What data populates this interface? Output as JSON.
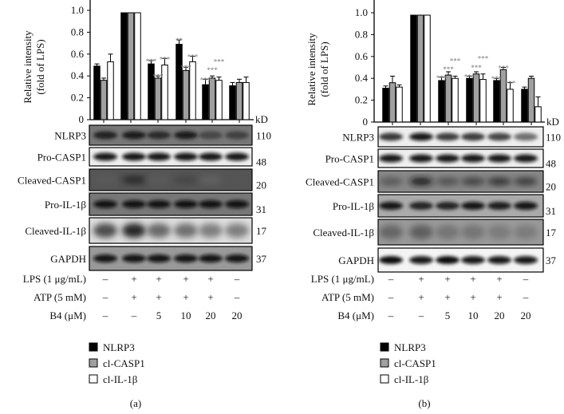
{
  "chart_data": [
    {
      "type": "bar",
      "panel_label": "(a)",
      "ylabel": [
        "Relative intensity",
        "(fold of LPS)"
      ],
      "ylim": [
        0,
        1.0
      ],
      "yticks": [
        "0",
        "0.2",
        "0.4",
        "0.6",
        "0.8",
        "1.0"
      ],
      "kd_label": "kD",
      "series": [
        {
          "name": "NLRP3",
          "color": "#000000",
          "values": [
            0.49,
            1.0,
            0.51,
            0.69,
            0.32,
            0.31
          ],
          "errors": [
            0.02,
            0,
            0.03,
            0.04,
            0.05,
            0.03
          ],
          "sig": [
            "",
            "",
            "***",
            "**",
            "***",
            ""
          ]
        },
        {
          "name": "cl-CASP1",
          "color": "#a0a0a0",
          "values": [
            0.36,
            1.0,
            0.38,
            0.45,
            0.38,
            0.34
          ],
          "errors": [
            0.02,
            0,
            0.02,
            0.03,
            0.02,
            0.03
          ],
          "sig": [
            "",
            "",
            "***",
            "***",
            "***",
            ""
          ]
        },
        {
          "name": "cl-IL-1β",
          "color": "#ffffff",
          "values": [
            0.53,
            1.0,
            0.5,
            0.53,
            0.36,
            0.34
          ],
          "errors": [
            0.07,
            0,
            0.06,
            0.05,
            0.03,
            0.05
          ],
          "sig": [
            "",
            "",
            "***",
            "***",
            "***",
            ""
          ]
        }
      ],
      "blots": [
        {
          "name": "NLRP3",
          "kd": "110"
        },
        {
          "name": "Pro-CASP1",
          "kd": "48"
        },
        {
          "name": "Cleaved-CASP1",
          "kd": "20"
        },
        {
          "name": "Pro-IL-1β",
          "kd": "31"
        },
        {
          "name": "Cleaved-IL-1β",
          "kd": "17"
        },
        {
          "name": "GAPDH",
          "kd": "37"
        }
      ],
      "conditions": [
        {
          "label": "LPS (1 μg/mL)",
          "values": [
            "–",
            "+",
            "+",
            "+",
            "+",
            "–"
          ]
        },
        {
          "label": "ATP (5 mM)",
          "values": [
            "–",
            "+",
            "+",
            "+",
            "+",
            "–"
          ]
        },
        {
          "label": "B4 (μM)",
          "values": [
            "–",
            "–",
            "5",
            "10",
            "20",
            "20"
          ]
        }
      ]
    },
    {
      "type": "bar",
      "panel_label": "(b)",
      "ylabel": [
        "Relative intensity",
        "(fold of LPS)"
      ],
      "ylim": [
        0,
        1.0
      ],
      "yticks": [
        "0",
        "0.2",
        "0.4",
        "0.6",
        "0.8",
        "1.0"
      ],
      "kd_label": "kD",
      "series": [
        {
          "name": "NLRP3",
          "color": "#000000",
          "values": [
            0.31,
            1.0,
            0.38,
            0.4,
            0.38,
            0.3
          ],
          "errors": [
            0.02,
            0,
            0.03,
            0.02,
            0.02,
            0.02
          ],
          "sig": [
            "",
            "",
            "***",
            "***",
            "***",
            ""
          ]
        },
        {
          "name": "cl-CASP1",
          "color": "#a0a0a0",
          "values": [
            0.36,
            1.0,
            0.43,
            0.44,
            0.48,
            0.4
          ],
          "errors": [
            0.06,
            0,
            0.03,
            0.02,
            0.02,
            0.02
          ],
          "sig": [
            "",
            "",
            "***",
            "***",
            "***",
            ""
          ]
        },
        {
          "name": "cl-IL-1β",
          "color": "#ffffff",
          "values": [
            0.32,
            1.0,
            0.4,
            0.39,
            0.3,
            0.14
          ],
          "errors": [
            0.02,
            0,
            0.02,
            0.05,
            0.06,
            0.09
          ],
          "sig": [
            "",
            "",
            "***",
            "***",
            "***",
            ""
          ]
        }
      ],
      "blots": [
        {
          "name": "NLRP3",
          "kd": "110"
        },
        {
          "name": "Pro-CASP1",
          "kd": "48"
        },
        {
          "name": "Cleaved-CASP1",
          "kd": "20"
        },
        {
          "name": "Pro-IL-1β",
          "kd": "31"
        },
        {
          "name": "Cleaved-IL-1β",
          "kd": "17"
        },
        {
          "name": "GAPDH",
          "kd": "37"
        }
      ],
      "conditions": [
        {
          "label": "LPS (1 μg/mL)",
          "values": [
            "–",
            "+",
            "+",
            "+",
            "+",
            "–"
          ]
        },
        {
          "label": "ATP (5 mM)",
          "values": [
            "–",
            "+",
            "+",
            "+",
            "+",
            "–"
          ]
        },
        {
          "label": "B4 (μM)",
          "values": [
            "–",
            "–",
            "5",
            "10",
            "20",
            "20"
          ]
        }
      ]
    }
  ]
}
